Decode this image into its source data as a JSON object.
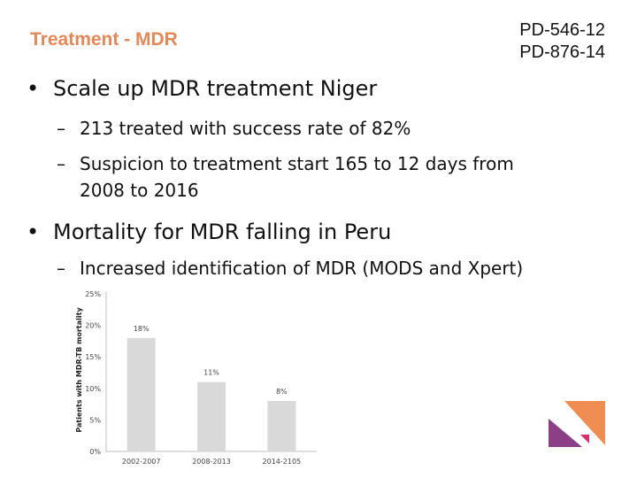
{
  "slide": {
    "title": "Treatment - MDR",
    "codes": [
      "PD-546-12",
      "PD-876-14"
    ],
    "bullets": [
      {
        "marker": "•",
        "text": "Scale up MDR treatment Niger",
        "subbullets": [
          {
            "marker": "–",
            "lines": [
              "213 treated with success rate of 82%"
            ]
          },
          {
            "marker": "–",
            "lines": [
              "Suspicion to treatment start 165 to 12 days from",
              "2008 to 2016"
            ]
          }
        ]
      },
      {
        "marker": "•",
        "text": "Mortality for MDR falling in Peru",
        "subbullets": [
          {
            "marker": "–",
            "lines": [
              "Increased identification of MDR (MODS and Xpert)"
            ]
          }
        ]
      }
    ]
  },
  "chart_data": {
    "type": "bar",
    "categories": [
      "2002-2007",
      "2008-2013",
      "2014-2105"
    ],
    "values": [
      18,
      11,
      8
    ],
    "data_labels": [
      "18%",
      "11%",
      "8%"
    ],
    "ylabel": "Patients with MDR-TB mortality",
    "ylim": [
      0,
      25
    ],
    "yticks": [
      "0%",
      "5%",
      "10%",
      "15%",
      "20%",
      "25%"
    ],
    "bar_color": "#d9d9d9",
    "grid": false
  },
  "colors": {
    "title": "#e4885a",
    "logo_orange": "#f08d52",
    "logo_purple": "#8b3f86",
    "logo_magenta": "#d6306f"
  }
}
